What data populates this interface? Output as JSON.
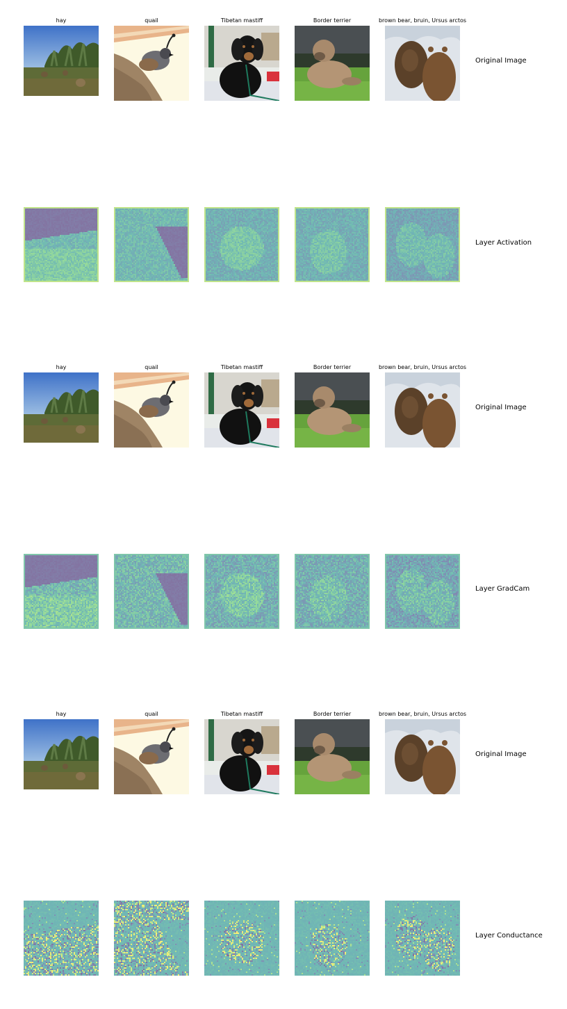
{
  "columns": {
    "titles": [
      "hay",
      "quail",
      "Tibetan mastiff",
      "Border terrier",
      "brown bear, bruin, Ursus arctos"
    ],
    "image_subjects": [
      "hay-field-icon",
      "quail-icon",
      "mastiff-dog-icon",
      "terrier-dog-icon",
      "brown-bear-icon"
    ]
  },
  "row_labels": {
    "original_1": "Original Image",
    "activation": "Layer Activation",
    "original_2": "Original Image",
    "gradcam": "Layer GradCam",
    "original_3": "Original Image",
    "conductance": "Layer Conductance"
  },
  "colormap": {
    "name": "viridis",
    "low": "#440154",
    "mid": "#21918c",
    "high": "#fde725",
    "neutral": "#5fa8a5"
  }
}
